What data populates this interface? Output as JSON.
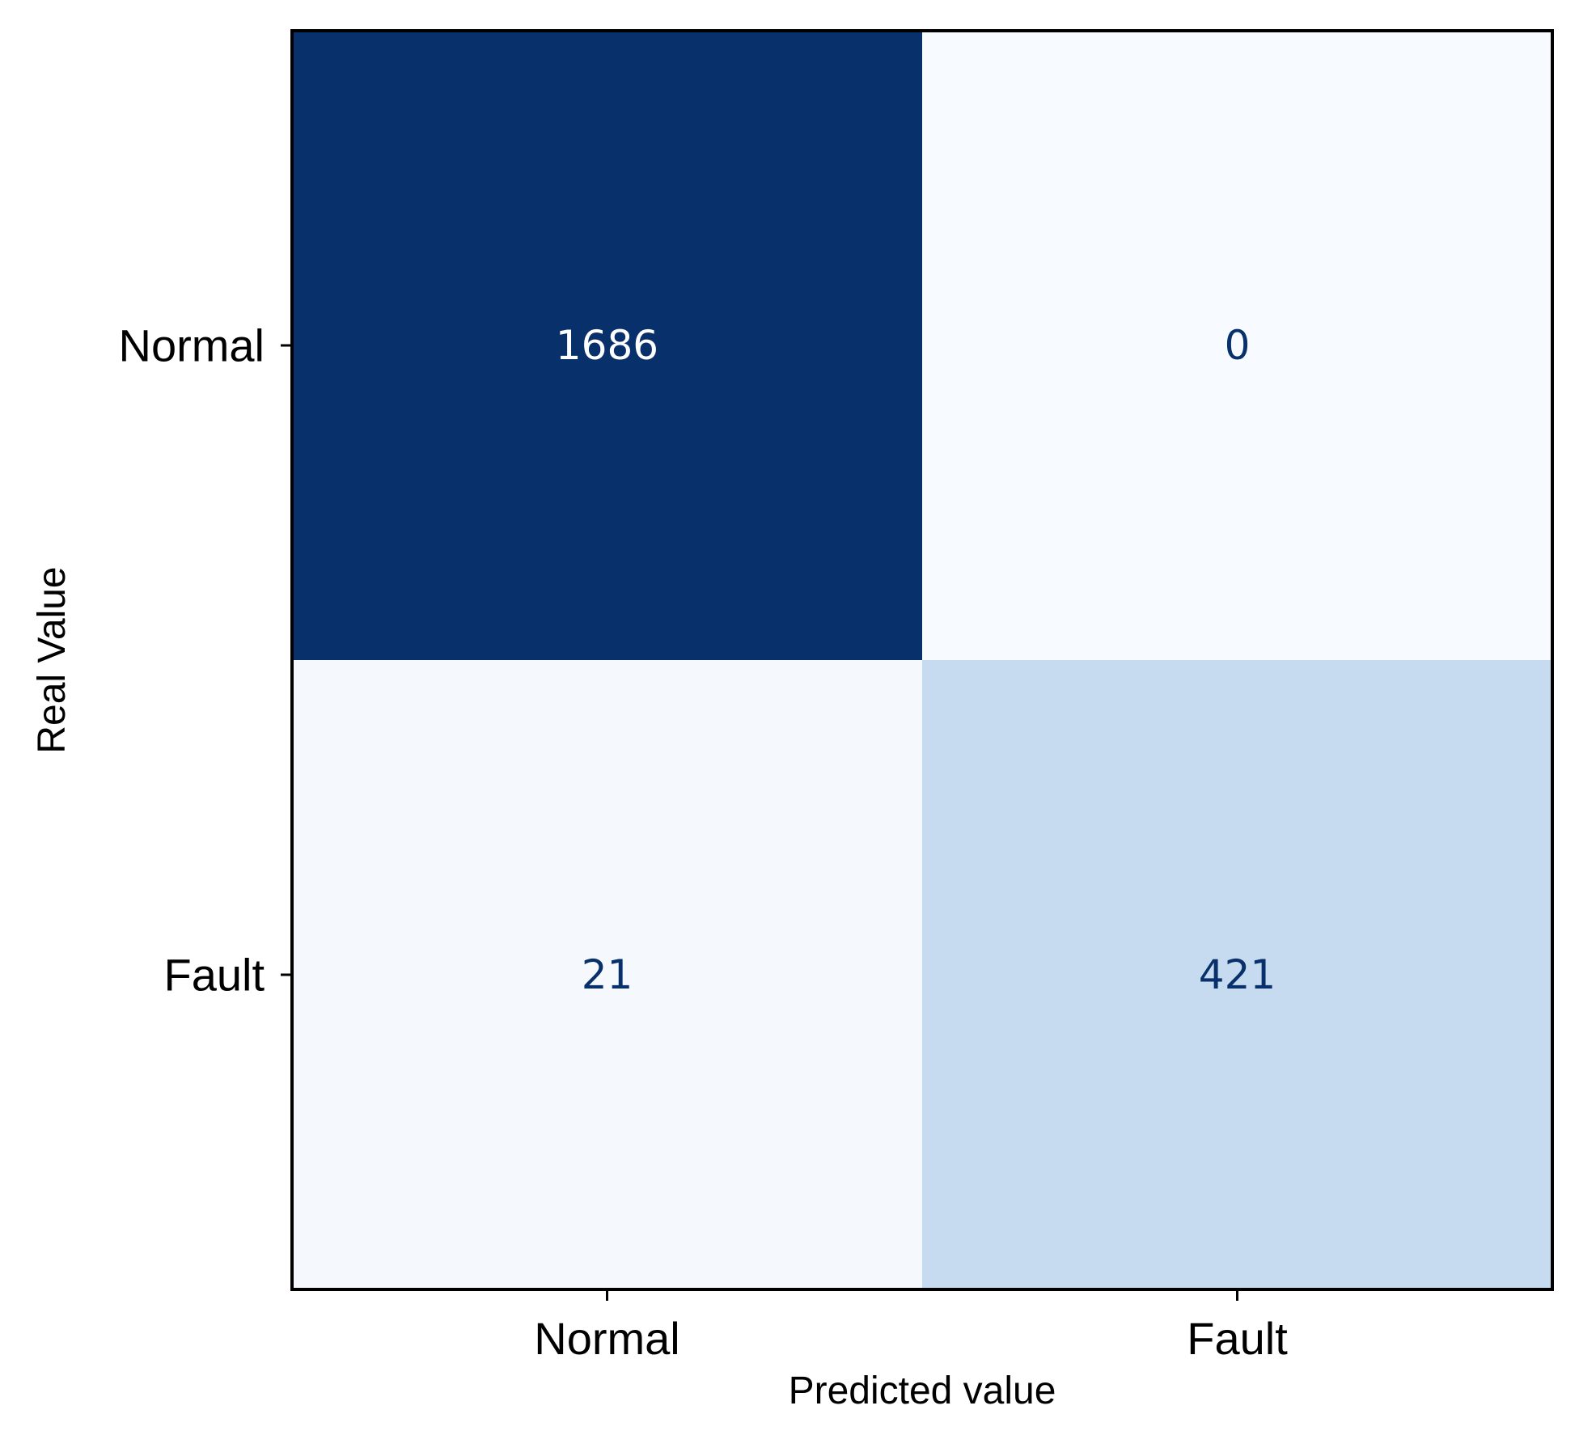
{
  "chart_data": {
    "type": "heatmap",
    "subtype": "confusion-matrix",
    "xlabel": "Predicted value",
    "ylabel": "Real Value",
    "x_categories": [
      "Normal",
      "Fault"
    ],
    "y_categories": [
      "Normal",
      "Fault"
    ],
    "matrix": [
      [
        1686,
        0
      ],
      [
        21,
        421
      ]
    ],
    "colormap": "Blues",
    "colors": {
      "min": "#f7fbff",
      "max": "#08306b",
      "text_on_dark": "#ffffff",
      "text_on_light": "#08306b",
      "frame": "#000000"
    },
    "colorbar": false,
    "grid": false
  }
}
